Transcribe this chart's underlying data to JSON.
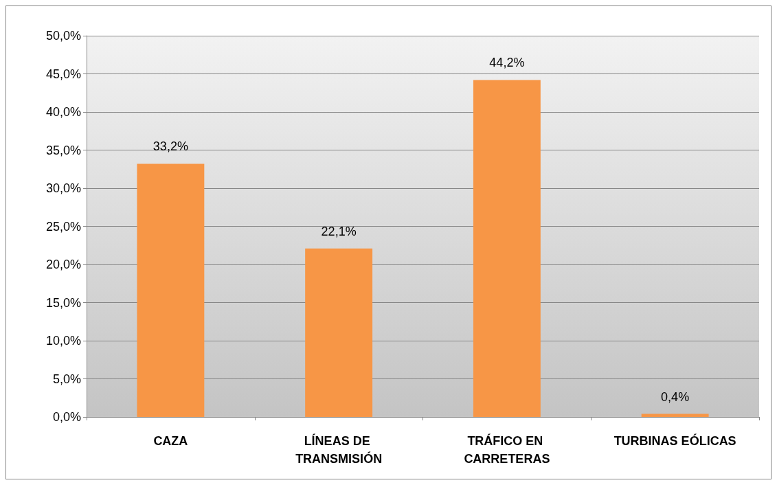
{
  "chart_data": {
    "type": "bar",
    "categories": [
      "CAZA",
      "LÍNEAS DE TRANSMISIÓN",
      "TRÁFICO EN CARRETERAS",
      "TURBINAS EÓLICAS"
    ],
    "values": [
      33.2,
      22.1,
      44.2,
      0.4
    ],
    "value_labels": [
      "33,2%",
      "22,1%",
      "44,2%",
      "0,4%"
    ],
    "color": "#f79646",
    "ylim": [
      0,
      50
    ],
    "yticks": [
      {
        "value": 0,
        "label": "0,0%"
      },
      {
        "value": 5,
        "label": "5,0%"
      },
      {
        "value": 10,
        "label": "10,0%"
      },
      {
        "value": 15,
        "label": "15,0%"
      },
      {
        "value": 20,
        "label": "20,0%"
      },
      {
        "value": 25,
        "label": "25,0%"
      },
      {
        "value": 30,
        "label": "30,0%"
      },
      {
        "value": 35,
        "label": "35,0%"
      },
      {
        "value": 40,
        "label": "40,0%"
      },
      {
        "value": 45,
        "label": "45,0%"
      },
      {
        "value": 50,
        "label": "50,0%"
      }
    ],
    "grid": "y"
  }
}
